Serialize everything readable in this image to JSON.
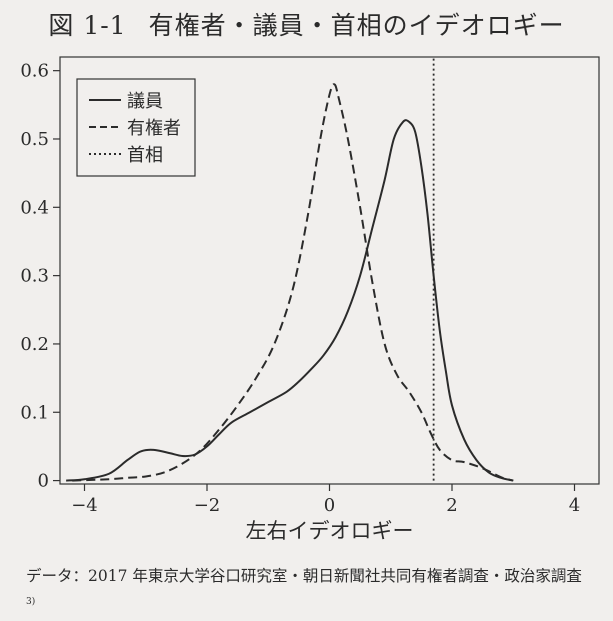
{
  "figure": {
    "number": "図 1-1",
    "title": "有権者・議員・首相のイデオロギー"
  },
  "chart_data": {
    "type": "line",
    "xlabel": "左右イデオロギー",
    "ylabel": "",
    "xlim": [
      -4.4,
      4.4
    ],
    "ylim": [
      -0.005,
      0.62
    ],
    "xticks": [
      -4,
      -2,
      0,
      2,
      4
    ],
    "yticks": [
      0,
      0.1,
      0.2,
      0.3,
      0.4,
      0.5,
      0.6
    ],
    "legend_position": "top-left",
    "series": [
      {
        "name": "議員",
        "style": "solid",
        "x": [
          -4.3,
          -4.0,
          -3.6,
          -3.3,
          -3.1,
          -2.95,
          -2.8,
          -2.6,
          -2.4,
          -2.2,
          -2.0,
          -1.8,
          -1.6,
          -1.3,
          -1.0,
          -0.7,
          -0.5,
          -0.3,
          -0.1,
          0.1,
          0.3,
          0.5,
          0.7,
          0.9,
          1.05,
          1.2,
          1.3,
          1.4,
          1.5,
          1.6,
          1.7,
          1.8,
          1.9,
          2.0,
          2.2,
          2.4,
          2.6,
          2.8,
          3.0
        ],
        "y": [
          0.0,
          0.002,
          0.01,
          0.03,
          0.042,
          0.045,
          0.044,
          0.04,
          0.036,
          0.038,
          0.05,
          0.068,
          0.085,
          0.1,
          0.115,
          0.13,
          0.145,
          0.163,
          0.183,
          0.21,
          0.248,
          0.3,
          0.37,
          0.44,
          0.5,
          0.525,
          0.525,
          0.51,
          0.46,
          0.39,
          0.3,
          0.22,
          0.16,
          0.11,
          0.06,
          0.03,
          0.012,
          0.004,
          0.0
        ]
      },
      {
        "name": "有権者",
        "style": "dashed",
        "x": [
          -4.2,
          -3.6,
          -3.3,
          -3.0,
          -2.7,
          -2.4,
          -2.1,
          -1.8,
          -1.5,
          -1.2,
          -0.9,
          -0.6,
          -0.35,
          -0.15,
          0.0,
          0.08,
          0.15,
          0.3,
          0.5,
          0.7,
          0.9,
          1.1,
          1.3,
          1.5,
          1.65,
          1.8,
          2.0,
          2.2,
          2.5,
          2.8,
          3.0
        ],
        "y": [
          0.0,
          0.002,
          0.004,
          0.006,
          0.012,
          0.025,
          0.045,
          0.075,
          0.11,
          0.15,
          0.2,
          0.28,
          0.39,
          0.5,
          0.565,
          0.58,
          0.56,
          0.5,
          0.4,
          0.29,
          0.2,
          0.155,
          0.13,
          0.1,
          0.07,
          0.045,
          0.03,
          0.027,
          0.018,
          0.005,
          0.0
        ]
      },
      {
        "name": "首相",
        "style": "dotted",
        "x": [
          1.7,
          1.7
        ],
        "y": [
          0,
          0.62
        ]
      }
    ]
  },
  "source_note": {
    "text": "データ：2017 年東京大学谷口研究室・朝日新聞社共同有権者調査・政治家調査",
    "superscript": "3)"
  }
}
